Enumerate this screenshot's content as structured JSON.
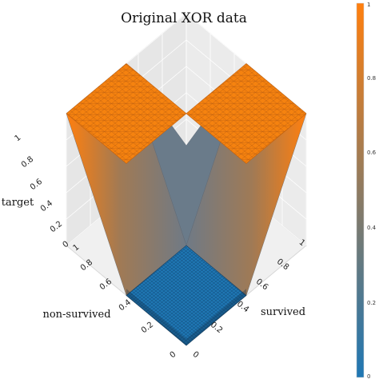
{
  "chart_data": {
    "type": "surface-3d",
    "title": "Original XOR data",
    "xlabel": "non-survived",
    "ylabel": "survived",
    "zlabel": "target",
    "x_ticks": [
      "0",
      "0.2",
      "0.4",
      "0.6",
      "0.8",
      "1"
    ],
    "y_ticks": [
      "0",
      "0.2",
      "0.4",
      "0.6",
      "0.8",
      "1"
    ],
    "z_ticks": [
      "0",
      "0.2",
      "0.4",
      "0.6",
      "0.8",
      "1"
    ],
    "xlim": [
      0,
      1
    ],
    "ylim": [
      0,
      1
    ],
    "zlim": [
      0,
      1
    ],
    "colorbar": {
      "range": [
        0,
        1
      ],
      "ticks": [
        "0",
        "0.2",
        "0.4",
        "0.6",
        "0.8",
        "1"
      ],
      "colors": [
        "#1f77b4",
        "#ff7f0e"
      ]
    },
    "regions": [
      {
        "x_range": [
          0,
          0.5
        ],
        "y_range": [
          0,
          0.5
        ],
        "target": 0
      },
      {
        "x_range": [
          0.5,
          1
        ],
        "y_range": [
          0,
          0.5
        ],
        "target": 1
      },
      {
        "x_range": [
          0,
          0.5
        ],
        "y_range": [
          0.5,
          1
        ],
        "target": 1
      },
      {
        "x_range": [
          0.5,
          1
        ],
        "y_range": [
          0.5,
          1
        ],
        "target": 0
      }
    ],
    "grid": true,
    "colorbar_placement": "right"
  }
}
